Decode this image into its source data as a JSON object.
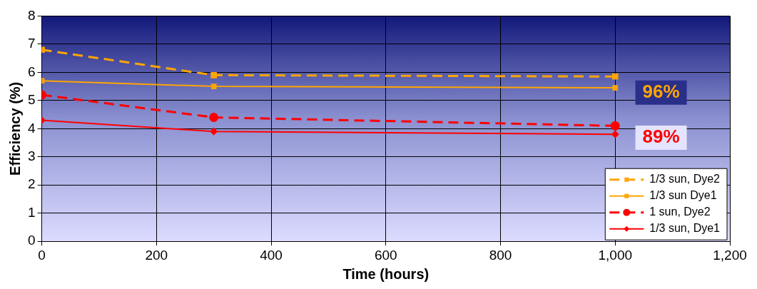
{
  "chart_data": {
    "type": "line",
    "xlabel": "Time (hours)",
    "ylabel": "Efficiency (%)",
    "xlim": [
      0,
      1200
    ],
    "xticks": [
      0,
      200,
      400,
      600,
      800,
      {
        "value": 1000,
        "label": "1,000"
      },
      {
        "value": 1200,
        "label": "1,200"
      }
    ],
    "ylim": [
      0,
      8
    ],
    "yticks": [
      0,
      1,
      2,
      3,
      4,
      5,
      6,
      7,
      8
    ],
    "grid": true,
    "legend": "bottom right",
    "x": [
      0,
      300,
      1000
    ],
    "series": [
      {
        "name": "1/3 sun, Dye2",
        "color": "#ffa500",
        "values": [
          6.8,
          5.9,
          5.85
        ],
        "marker": "square",
        "line_style": "dashed"
      },
      {
        "name": "1/3 sun Dye1",
        "color": "#ffa500",
        "values": [
          5.7,
          5.5,
          5.45
        ],
        "marker": "square",
        "line_style": "solid"
      },
      {
        "name": "1 sun, Dye2",
        "color": "#ff0000",
        "values": [
          5.2,
          4.4,
          4.1
        ],
        "marker": "circle",
        "line_style": "dashed"
      },
      {
        "name": "1/3 sun, Dye1",
        "color": "#ff0000",
        "values": [
          4.3,
          3.9,
          3.8
        ],
        "marker": "diamond",
        "line_style": "solid"
      }
    ],
    "annotations": [
      "96%",
      "89%"
    ]
  }
}
